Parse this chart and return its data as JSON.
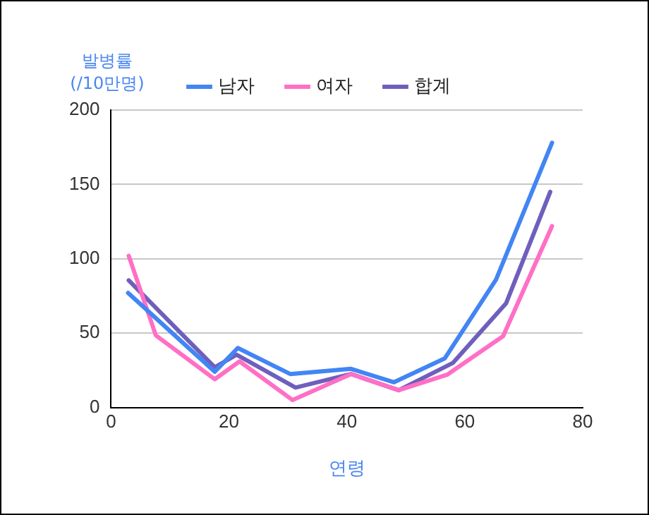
{
  "chart_data": {
    "type": "line",
    "xlabel": "연령",
    "ylabel": "발병률\n(/10만명)",
    "series": [
      {
        "name": "남자",
        "color": "#4285f4",
        "x": [
          2.9,
          17.6,
          21.5,
          30.4,
          40.7,
          48,
          56.6,
          65.3,
          74.8
        ],
        "values": [
          77,
          24,
          40,
          22.5,
          26,
          17,
          33,
          86,
          178
        ]
      },
      {
        "name": "여자",
        "color": "#ff6fc6",
        "x": [
          3,
          7.6,
          17.6,
          21.8,
          30.8,
          40.7,
          48.8,
          57,
          66.5,
          74.8
        ],
        "values": [
          102,
          48.5,
          19,
          31,
          5,
          22.5,
          11.6,
          22,
          48,
          122
        ]
      },
      {
        "name": "합계",
        "color": "#6f5fbd",
        "x": [
          3,
          17.6,
          21.3,
          31.3,
          40.7,
          48.8,
          58,
          67,
          74.5
        ],
        "values": [
          85.5,
          27,
          35.5,
          13.4,
          22.5,
          11.6,
          30,
          70,
          145
        ]
      }
    ],
    "xlim": [
      0,
      80
    ],
    "xticks": [
      0,
      20,
      40,
      60,
      80
    ],
    "ylim": [
      0,
      200
    ],
    "yticks": [
      0,
      50,
      100,
      150,
      200
    ],
    "grid": "y",
    "legend": "top",
    "marker": "none",
    "line_style": "solid"
  }
}
